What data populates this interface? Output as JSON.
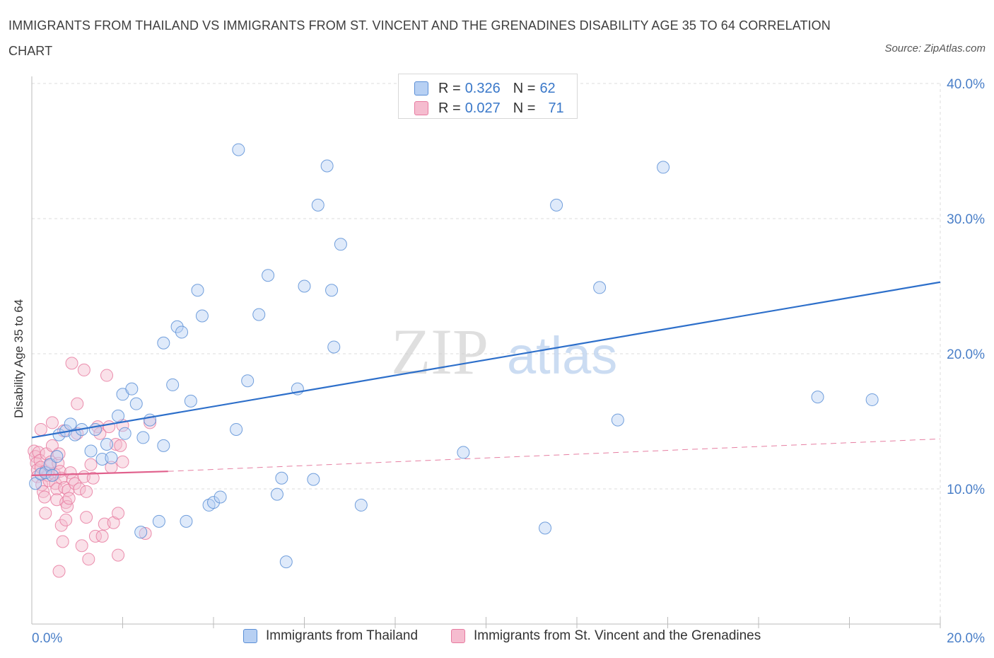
{
  "title": "IMMIGRANTS FROM THAILAND VS IMMIGRANTS FROM ST. VINCENT AND THE GRENADINES DISABILITY AGE 35 TO 64 CORRELATION CHART",
  "source": "Source: ZipAtlas.com",
  "watermark": {
    "zip": "ZIP",
    "atlas": "atlas"
  },
  "colors": {
    "blue": "#5b8fd6",
    "blue_fill": "#b7d0f3",
    "blue_line": "#2d6fca",
    "pink": "#e77ba0",
    "pink_fill": "#f5bccf",
    "pink_line": "#e0608c",
    "tick": "#4a7fc8",
    "grid": "#dcdcdc"
  },
  "legend": {
    "rows": [
      {
        "r_label": "R =",
        "r_value": "0.326",
        "n_label": "N =",
        "n_value": "62"
      },
      {
        "r_label": "R =",
        "r_value": "0.027",
        "n_label": "N =",
        "n_value": "71"
      }
    ]
  },
  "bottom_legend": [
    "Immigrants from Thailand",
    "Immigrants from St. Vincent and the Grenadines"
  ],
  "chart_data": {
    "type": "scatter",
    "xlabel": "",
    "ylabel": "Disability Age 35 to 64",
    "xlim": [
      0,
      20
    ],
    "ylim": [
      0,
      40
    ],
    "x_tick_labels": [
      "0.0%",
      "20.0%"
    ],
    "y_ticks": [
      10,
      20,
      30,
      40
    ],
    "y_tick_labels": [
      "10.0%",
      "20.0%",
      "30.0%",
      "40.0%"
    ],
    "grid": true,
    "legend_position": "top-center",
    "series": [
      {
        "name": "Immigrants from Thailand",
        "trend": {
          "x": [
            0,
            20
          ],
          "y": [
            13.8,
            25.3
          ],
          "style": "solid"
        },
        "points": [
          [
            0.08,
            10.4
          ],
          [
            0.2,
            11.1
          ],
          [
            0.3,
            11.2
          ],
          [
            0.4,
            11.8
          ],
          [
            0.45,
            11.0
          ],
          [
            0.55,
            12.4
          ],
          [
            0.6,
            14.0
          ],
          [
            0.75,
            14.3
          ],
          [
            0.85,
            14.8
          ],
          [
            0.95,
            14.0
          ],
          [
            1.1,
            14.4
          ],
          [
            1.3,
            12.8
          ],
          [
            1.4,
            14.4
          ],
          [
            1.55,
            12.2
          ],
          [
            1.65,
            13.3
          ],
          [
            1.75,
            12.3
          ],
          [
            1.9,
            15.4
          ],
          [
            2.0,
            17.0
          ],
          [
            2.05,
            14.1
          ],
          [
            2.2,
            17.4
          ],
          [
            2.3,
            16.3
          ],
          [
            2.45,
            13.8
          ],
          [
            2.6,
            15.1
          ],
          [
            2.4,
            6.8
          ],
          [
            2.8,
            7.6
          ],
          [
            2.9,
            13.2
          ],
          [
            2.9,
            20.8
          ],
          [
            3.1,
            17.7
          ],
          [
            3.2,
            22.0
          ],
          [
            3.3,
            21.6
          ],
          [
            3.4,
            7.6
          ],
          [
            3.5,
            16.5
          ],
          [
            3.65,
            24.7
          ],
          [
            3.75,
            22.8
          ],
          [
            3.9,
            8.8
          ],
          [
            4.0,
            9.0
          ],
          [
            4.15,
            9.4
          ],
          [
            4.5,
            14.4
          ],
          [
            4.55,
            35.1
          ],
          [
            4.75,
            18.0
          ],
          [
            5.0,
            22.9
          ],
          [
            5.2,
            25.8
          ],
          [
            5.4,
            9.6
          ],
          [
            5.5,
            10.8
          ],
          [
            5.6,
            4.6
          ],
          [
            5.85,
            17.4
          ],
          [
            6.0,
            25.0
          ],
          [
            6.2,
            10.7
          ],
          [
            6.3,
            31.0
          ],
          [
            6.5,
            33.9
          ],
          [
            6.6,
            24.7
          ],
          [
            6.65,
            20.5
          ],
          [
            6.8,
            28.1
          ],
          [
            7.25,
            8.8
          ],
          [
            9.5,
            12.7
          ],
          [
            11.3,
            7.1
          ],
          [
            11.55,
            31.0
          ],
          [
            12.5,
            24.9
          ],
          [
            12.9,
            15.1
          ],
          [
            13.9,
            33.8
          ],
          [
            17.3,
            16.8
          ],
          [
            18.5,
            16.6
          ]
        ]
      },
      {
        "name": "Immigrants from St. Vincent and the Grenadines",
        "trend": {
          "x": [
            0,
            3.0
          ],
          "y": [
            11.0,
            11.3
          ],
          "style": "solid"
        },
        "trend_dashed": {
          "x": [
            3.0,
            20
          ],
          "y": [
            11.3,
            13.7
          ],
          "style": "dashed"
        },
        "points": [
          [
            0.05,
            12.8
          ],
          [
            0.08,
            12.4
          ],
          [
            0.1,
            11.9
          ],
          [
            0.12,
            11.4
          ],
          [
            0.12,
            10.9
          ],
          [
            0.15,
            12.7
          ],
          [
            0.18,
            12.1
          ],
          [
            0.2,
            11.6
          ],
          [
            0.22,
            10.3
          ],
          [
            0.25,
            9.8
          ],
          [
            0.28,
            9.4
          ],
          [
            0.2,
            14.4
          ],
          [
            0.3,
            11.3
          ],
          [
            0.32,
            12.6
          ],
          [
            0.35,
            11.0
          ],
          [
            0.38,
            10.6
          ],
          [
            0.4,
            11.7
          ],
          [
            0.42,
            12.0
          ],
          [
            0.3,
            8.2
          ],
          [
            0.45,
            13.2
          ],
          [
            0.45,
            14.9
          ],
          [
            0.5,
            11.1
          ],
          [
            0.52,
            10.4
          ],
          [
            0.55,
            10.0
          ],
          [
            0.55,
            9.2
          ],
          [
            0.58,
            11.9
          ],
          [
            0.6,
            12.6
          ],
          [
            0.62,
            11.3
          ],
          [
            0.65,
            10.8
          ],
          [
            0.65,
            7.3
          ],
          [
            0.68,
            6.1
          ],
          [
            0.7,
            14.3
          ],
          [
            0.72,
            10.1
          ],
          [
            0.6,
            3.9
          ],
          [
            0.75,
            9.0
          ],
          [
            0.78,
            8.7
          ],
          [
            0.8,
            9.9
          ],
          [
            0.82,
            9.3
          ],
          [
            0.85,
            11.2
          ],
          [
            0.88,
            19.3
          ],
          [
            0.9,
            10.7
          ],
          [
            0.75,
            7.7
          ],
          [
            0.95,
            10.4
          ],
          [
            1.0,
            14.1
          ],
          [
            1.0,
            16.3
          ],
          [
            1.05,
            10.0
          ],
          [
            1.1,
            5.8
          ],
          [
            1.15,
            10.9
          ],
          [
            1.15,
            18.8
          ],
          [
            1.2,
            9.8
          ],
          [
            1.2,
            7.9
          ],
          [
            1.25,
            4.8
          ],
          [
            1.3,
            11.8
          ],
          [
            1.35,
            10.8
          ],
          [
            1.4,
            6.5
          ],
          [
            1.45,
            14.6
          ],
          [
            1.5,
            14.1
          ],
          [
            1.55,
            6.5
          ],
          [
            1.6,
            7.4
          ],
          [
            1.65,
            18.4
          ],
          [
            1.7,
            14.6
          ],
          [
            1.75,
            11.6
          ],
          [
            1.8,
            7.5
          ],
          [
            1.85,
            13.3
          ],
          [
            1.9,
            5.1
          ],
          [
            1.95,
            13.2
          ],
          [
            1.9,
            8.2
          ],
          [
            2.0,
            12.0
          ],
          [
            2.0,
            14.7
          ],
          [
            2.5,
            6.7
          ],
          [
            2.6,
            14.9
          ]
        ]
      }
    ]
  }
}
